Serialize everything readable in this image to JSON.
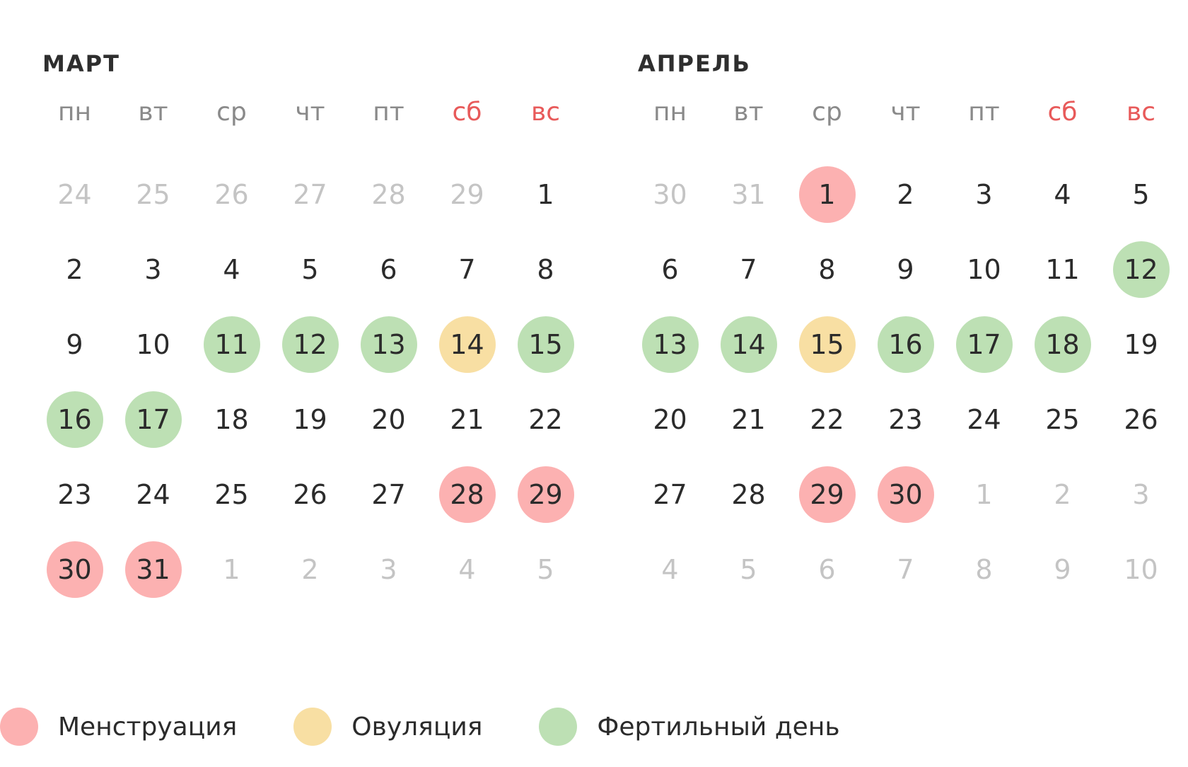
{
  "months": [
    {
      "title": "МАРТ",
      "weekdays": [
        "пн",
        "вт",
        "ср",
        "чт",
        "пт",
        "сб",
        "вс"
      ],
      "weeks": [
        [
          {
            "d": "24",
            "t": "muted"
          },
          {
            "d": "25",
            "t": "muted"
          },
          {
            "d": "26",
            "t": "muted"
          },
          {
            "d": "27",
            "t": "muted"
          },
          {
            "d": "28",
            "t": "muted"
          },
          {
            "d": "29",
            "t": "muted"
          },
          {
            "d": "1",
            "t": ""
          }
        ],
        [
          {
            "d": "2",
            "t": ""
          },
          {
            "d": "3",
            "t": ""
          },
          {
            "d": "4",
            "t": ""
          },
          {
            "d": "5",
            "t": ""
          },
          {
            "d": "6",
            "t": ""
          },
          {
            "d": "7",
            "t": ""
          },
          {
            "d": "8",
            "t": ""
          }
        ],
        [
          {
            "d": "9",
            "t": ""
          },
          {
            "d": "10",
            "t": ""
          },
          {
            "d": "11",
            "t": "fertile"
          },
          {
            "d": "12",
            "t": "fertile"
          },
          {
            "d": "13",
            "t": "fertile"
          },
          {
            "d": "14",
            "t": "ovulation"
          },
          {
            "d": "15",
            "t": "fertile"
          }
        ],
        [
          {
            "d": "16",
            "t": "fertile"
          },
          {
            "d": "17",
            "t": "fertile"
          },
          {
            "d": "18",
            "t": ""
          },
          {
            "d": "19",
            "t": ""
          },
          {
            "d": "20",
            "t": ""
          },
          {
            "d": "21",
            "t": ""
          },
          {
            "d": "22",
            "t": ""
          }
        ],
        [
          {
            "d": "23",
            "t": ""
          },
          {
            "d": "24",
            "t": ""
          },
          {
            "d": "25",
            "t": ""
          },
          {
            "d": "26",
            "t": ""
          },
          {
            "d": "27",
            "t": ""
          },
          {
            "d": "28",
            "t": "menstruation"
          },
          {
            "d": "29",
            "t": "menstruation"
          }
        ],
        [
          {
            "d": "30",
            "t": "menstruation"
          },
          {
            "d": "31",
            "t": "menstruation"
          },
          {
            "d": "1",
            "t": "muted"
          },
          {
            "d": "2",
            "t": "muted"
          },
          {
            "d": "3",
            "t": "muted"
          },
          {
            "d": "4",
            "t": "muted"
          },
          {
            "d": "5",
            "t": "muted"
          }
        ]
      ]
    },
    {
      "title": "АПРЕЛЬ",
      "weekdays": [
        "пн",
        "вт",
        "ср",
        "чт",
        "пт",
        "сб",
        "вс"
      ],
      "weeks": [
        [
          {
            "d": "30",
            "t": "muted"
          },
          {
            "d": "31",
            "t": "muted"
          },
          {
            "d": "1",
            "t": "menstruation"
          },
          {
            "d": "2",
            "t": ""
          },
          {
            "d": "3",
            "t": ""
          },
          {
            "d": "4",
            "t": ""
          },
          {
            "d": "5",
            "t": ""
          }
        ],
        [
          {
            "d": "6",
            "t": ""
          },
          {
            "d": "7",
            "t": ""
          },
          {
            "d": "8",
            "t": ""
          },
          {
            "d": "9",
            "t": ""
          },
          {
            "d": "10",
            "t": ""
          },
          {
            "d": "11",
            "t": ""
          },
          {
            "d": "12",
            "t": "fertile"
          }
        ],
        [
          {
            "d": "13",
            "t": "fertile"
          },
          {
            "d": "14",
            "t": "fertile"
          },
          {
            "d": "15",
            "t": "ovulation"
          },
          {
            "d": "16",
            "t": "fertile"
          },
          {
            "d": "17",
            "t": "fertile"
          },
          {
            "d": "18",
            "t": "fertile"
          },
          {
            "d": "19",
            "t": ""
          }
        ],
        [
          {
            "d": "20",
            "t": ""
          },
          {
            "d": "21",
            "t": ""
          },
          {
            "d": "22",
            "t": ""
          },
          {
            "d": "23",
            "t": ""
          },
          {
            "d": "24",
            "t": ""
          },
          {
            "d": "25",
            "t": ""
          },
          {
            "d": "26",
            "t": ""
          }
        ],
        [
          {
            "d": "27",
            "t": ""
          },
          {
            "d": "28",
            "t": ""
          },
          {
            "d": "29",
            "t": "menstruation"
          },
          {
            "d": "30",
            "t": "menstruation"
          },
          {
            "d": "1",
            "t": "muted"
          },
          {
            "d": "2",
            "t": "muted"
          },
          {
            "d": "3",
            "t": "muted"
          }
        ],
        [
          {
            "d": "4",
            "t": "muted"
          },
          {
            "d": "5",
            "t": "muted"
          },
          {
            "d": "6",
            "t": "muted"
          },
          {
            "d": "7",
            "t": "muted"
          },
          {
            "d": "8",
            "t": "muted"
          },
          {
            "d": "9",
            "t": "muted"
          },
          {
            "d": "10",
            "t": "muted"
          }
        ]
      ]
    }
  ],
  "legend": [
    {
      "key": "menstruation",
      "label": "Менструация",
      "color": "#fcb1b1"
    },
    {
      "key": "ovulation",
      "label": "Овуляция",
      "color": "#f8dfa3"
    },
    {
      "key": "fertile",
      "label": "Фертильный день",
      "color": "#bde0b4"
    }
  ],
  "colors": {
    "weekend": "#e85a5a",
    "muted": "#c4c4c4",
    "text": "#2b2b2b"
  }
}
